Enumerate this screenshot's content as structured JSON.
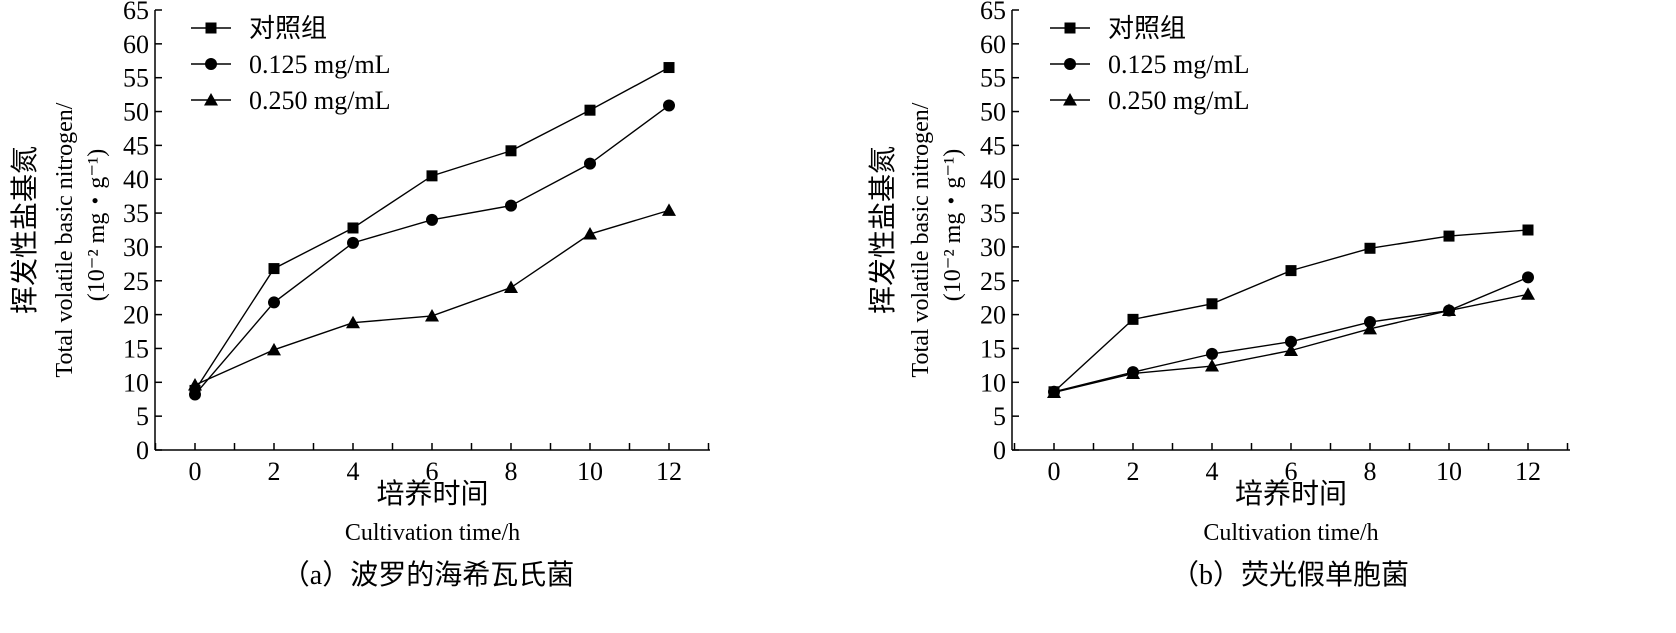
{
  "chart_data": [
    {
      "type": "line",
      "caption": "（a）波罗的海希瓦氏菌",
      "ylabel_cn": "挥发性盐基氮",
      "ylabel_en": "Total volatile basic nitrogen/",
      "ylabel_unit": "(10⁻² mg・g⁻¹)",
      "xlabel_cn": "培养时间",
      "xlabel_en": "Cultivation time/h",
      "x": [
        0,
        2,
        4,
        6,
        8,
        10,
        12
      ],
      "xlim": [
        -1,
        13
      ],
      "ylim": [
        0,
        65
      ],
      "yticks": [
        0,
        5,
        10,
        15,
        20,
        25,
        30,
        35,
        40,
        45,
        50,
        55,
        60,
        65
      ],
      "xticks": [
        0,
        2,
        4,
        6,
        8,
        10,
        12
      ],
      "legend_position": "top-left",
      "grid": false,
      "series": [
        {
          "name": "对照组",
          "marker": "square",
          "values": [
            8.8,
            26.8,
            32.8,
            40.5,
            44.2,
            50.2,
            56.5
          ]
        },
        {
          "name": "0.125 mg/mL",
          "marker": "circle",
          "values": [
            8.2,
            21.8,
            30.6,
            34.0,
            36.1,
            42.3,
            50.9
          ]
        },
        {
          "name": "0.250 mg/mL",
          "marker": "triangle",
          "values": [
            9.6,
            14.8,
            18.8,
            19.8,
            24.0,
            31.9,
            35.4
          ]
        }
      ]
    },
    {
      "type": "line",
      "caption": "（b）荧光假单胞菌",
      "ylabel_cn": "挥发性盐基氮",
      "ylabel_en": "Total volatile basic nitrogen/",
      "ylabel_unit": "(10⁻² mg・g⁻¹)",
      "xlabel_cn": "培养时间",
      "xlabel_en": "Cultivation time/h",
      "x": [
        0,
        2,
        4,
        6,
        8,
        10,
        12
      ],
      "xlim": [
        -1,
        13
      ],
      "ylim": [
        0,
        65
      ],
      "yticks": [
        0,
        5,
        10,
        15,
        20,
        25,
        30,
        35,
        40,
        45,
        50,
        55,
        60,
        65
      ],
      "xticks": [
        0,
        2,
        4,
        6,
        8,
        10,
        12
      ],
      "legend_position": "top-left",
      "grid": false,
      "series": [
        {
          "name": "对照组",
          "marker": "square",
          "values": [
            8.6,
            19.3,
            21.6,
            26.5,
            29.8,
            31.6,
            32.5
          ]
        },
        {
          "name": "0.125 mg/mL",
          "marker": "circle",
          "values": [
            8.6,
            11.5,
            14.2,
            16.0,
            18.9,
            20.6,
            25.5
          ]
        },
        {
          "name": "0.250 mg/mL",
          "marker": "triangle",
          "values": [
            8.5,
            11.3,
            12.4,
            14.7,
            17.9,
            20.6,
            23.0
          ]
        }
      ]
    }
  ]
}
